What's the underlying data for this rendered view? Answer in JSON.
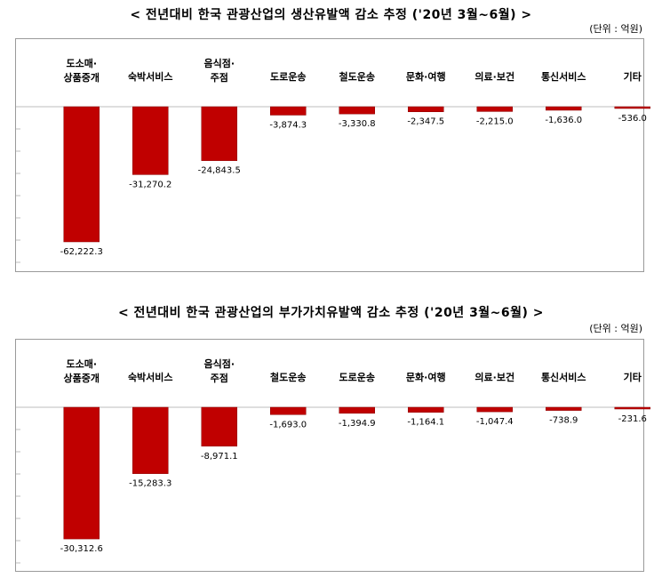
{
  "chart_data": [
    {
      "type": "bar",
      "title": "< 전년대비 한국 관광산업의 생산유발액 감소 추정 ('20년 3월~6월) >",
      "unit": "(단위 : 억원)",
      "categories": [
        "도소매·상품중개",
        "숙박서비스",
        "음식점·주점",
        "도로운송",
        "철도운송",
        "문화·여행",
        "의료·보건",
        "통신서비스",
        "기타"
      ],
      "category_lines": [
        [
          "도소매·",
          "상품중개"
        ],
        [
          "숙박서비스"
        ],
        [
          "음식점·",
          "주점"
        ],
        [
          "도로운송"
        ],
        [
          "철도운송"
        ],
        [
          "문화·여행"
        ],
        [
          "의료·보건"
        ],
        [
          "통신서비스"
        ],
        [
          "기타"
        ]
      ],
      "values": [
        -62222.3,
        -31270.2,
        -24843.5,
        -3874.3,
        -3330.8,
        -2347.5,
        -2215.0,
        -1636.0,
        -536.0
      ],
      "value_labels": [
        "-62,222.3",
        "-31,270.2",
        "-24,843.5",
        "-3,874.3",
        "-3,330.8",
        "-2,347.5",
        "-2,215.0",
        "-1,636.0",
        "-536.0"
      ],
      "ylim": [
        -70000,
        0
      ],
      "grid": false,
      "colors": {
        "bar": "#c00000",
        "bar_edge": "#8b0000"
      }
    },
    {
      "type": "bar",
      "title": "< 전년대비 한국 관광산업의 부가가치유발액 감소 추정 ('20년 3월~6월) >",
      "unit": "(단위 : 억원)",
      "categories": [
        "도소매·상품중개",
        "숙박서비스",
        "음식점·주점",
        "철도운송",
        "도로운송",
        "문화·여행",
        "의료·보건",
        "통신서비스",
        "기타"
      ],
      "category_lines": [
        [
          "도소매·",
          "상품중개"
        ],
        [
          "숙박서비스"
        ],
        [
          "음식점·",
          "주점"
        ],
        [
          "철도운송"
        ],
        [
          "도로운송"
        ],
        [
          "문화·여행"
        ],
        [
          "의료·보건"
        ],
        [
          "통신서비스"
        ],
        [
          "기타"
        ]
      ],
      "values": [
        -30312.6,
        -15283.3,
        -8971.1,
        -1693.0,
        -1394.9,
        -1164.1,
        -1047.4,
        -738.9,
        -231.6
      ],
      "value_labels": [
        "-30,312.6",
        "-15,283.3",
        "-8,971.1",
        "-1,693.0",
        "-1,394.9",
        "-1,164.1",
        "-1,047.4",
        "-738.9",
        "-231.6"
      ],
      "ylim": [
        -35000,
        0
      ],
      "grid": false,
      "colors": {
        "bar": "#c00000",
        "bar_edge": "#8b0000"
      }
    }
  ]
}
